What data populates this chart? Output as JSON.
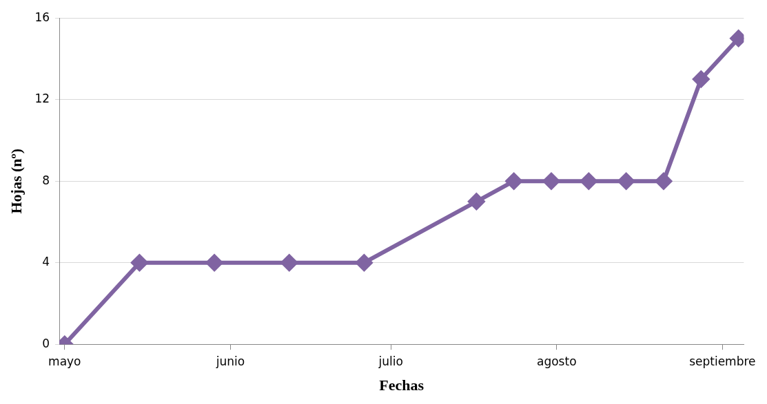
{
  "chart_data": {
    "type": "line",
    "xlabel": "Fechas",
    "ylabel": "Hojas (nº)",
    "x": [
      "--05-01",
      "--05-15",
      "--05-29",
      "--06-12",
      "--06-26",
      "--07-17",
      "--07-24",
      "--07-31",
      "--08-07",
      "--08-14",
      "--08-21",
      "--08-28",
      "--09-04"
    ],
    "series": [
      {
        "color": "#8064a2",
        "values": [
          0,
          4,
          4,
          4,
          4,
          7,
          8,
          8,
          8,
          8,
          8,
          13,
          15
        ]
      }
    ],
    "xlim": [
      "--04-30",
      "--09-05"
    ],
    "xticks": [
      {
        "value": "--05-01",
        "label": "mayo"
      },
      {
        "value": "--06-01",
        "label": "junio"
      },
      {
        "value": "--07-01",
        "label": "julio"
      },
      {
        "value": "--08-01",
        "label": "agosto"
      },
      {
        "value": "--09-01",
        "label": "septiembre"
      }
    ],
    "ylim": [
      0,
      16
    ],
    "yticks": [
      0,
      4,
      8,
      12,
      16
    ],
    "grid": "y",
    "marker": "diamond",
    "line_style": "solid",
    "legend": false
  }
}
